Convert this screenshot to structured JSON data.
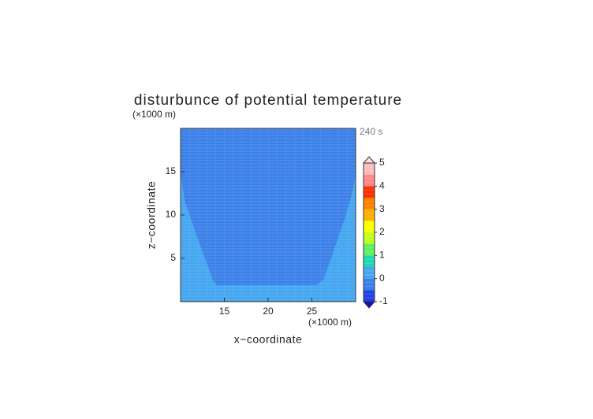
{
  "chart_data": {
    "type": "contour",
    "title": "disturbunce of potential temperature",
    "x_label": "x−coordinate",
    "y_label": "z−coordinate",
    "x_unit": "(×1000 m)",
    "y_unit": "(×1000 m)",
    "time_label": "240 s",
    "xlim": [
      10,
      30
    ],
    "ylim": [
      0,
      20
    ],
    "xticks": [
      15,
      20,
      25
    ],
    "yticks": [
      5,
      10,
      15
    ],
    "background_color": "#44a6f0",
    "regions": [
      {
        "color": "#3a80e8",
        "x": [
          10,
          10,
          10.5,
          11.2,
          11.9,
          12.8,
          13.7,
          14.1,
          25.5,
          26.3,
          27.2,
          28,
          28.9,
          29.6,
          30,
          30
        ],
        "y": [
          20,
          14.8,
          11.5,
          9.5,
          7.4,
          5,
          2.5,
          1.9,
          1.9,
          2.5,
          5,
          7.4,
          10,
          12.5,
          14.8,
          20
        ]
      }
    ],
    "colorbar": {
      "bounds": [
        -1,
        -0.5,
        0,
        0.5,
        1,
        1.5,
        2,
        2.5,
        3,
        3.5,
        4,
        4.5,
        5
      ],
      "colors": [
        "#2040e8",
        "#3a80e8",
        "#44a6f0",
        "#20d8b0",
        "#60f060",
        "#c0ff20",
        "#ffff00",
        "#ffb000",
        "#ff8000",
        "#ff3000",
        "#ff8888",
        "#ffbcbc"
      ],
      "ticks": [
        -1,
        0,
        1,
        2,
        3,
        4,
        5
      ],
      "under_color": "#1010c0",
      "over_color": "#ffe0e0"
    }
  }
}
